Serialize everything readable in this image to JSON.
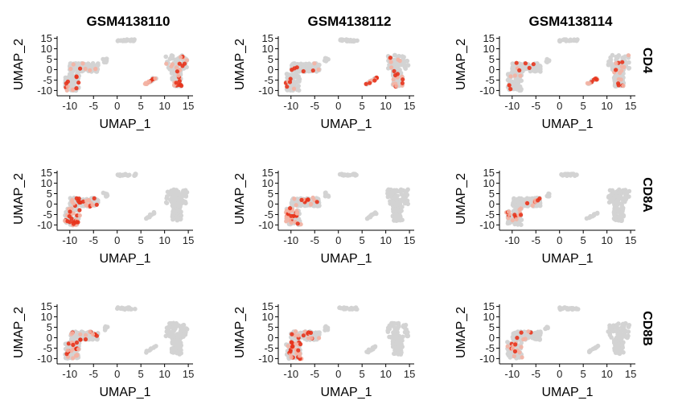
{
  "chart_data": {
    "type": "scatter",
    "description_free": true,
    "columns": [
      "GSM4138110",
      "GSM4138112",
      "GSM4138114"
    ],
    "rows": [
      "CD4",
      "CD8A",
      "CD8B"
    ],
    "xlabel": "UMAP_1",
    "ylabel": "UMAP_2",
    "xlim": [
      -12,
      16
    ],
    "ylim": [
      -11,
      16
    ],
    "xticks": [
      -10,
      -5,
      0,
      5,
      10,
      15
    ],
    "yticks": [
      -10,
      -5,
      0,
      5,
      10,
      15
    ],
    "colors": {
      "background_cells": "#d3d3d3",
      "low_expression": "#f4b3a3",
      "high_expression": "#e8341c"
    },
    "clusters": [
      {
        "name": "top-bar",
        "x": [
          0,
          4
        ],
        "y": [
          13.5,
          14.5
        ]
      },
      {
        "name": "small-blob",
        "x": [
          -3,
          -2
        ],
        "y": [
          3.5,
          5.5
        ]
      },
      {
        "name": "left-band",
        "x": [
          -10,
          -4
        ],
        "y": [
          -1,
          3
        ]
      },
      {
        "name": "left-tail",
        "x": [
          -11,
          -8
        ],
        "y": [
          -10,
          -2
        ]
      },
      {
        "name": "right-cluster",
        "x": [
          10.5,
          15
        ],
        "y": [
          -8,
          7
        ]
      },
      {
        "name": "mid-dots",
        "x": [
          6,
          8
        ],
        "y": [
          -7,
          -4
        ]
      }
    ],
    "expressed_cells": {
      "CD4": {
        "GSM4138110": 60,
        "GSM4138112": 45,
        "GSM4138114": 40
      },
      "CD8A": {
        "GSM4138110": 55,
        "GSM4138112": 50,
        "GSM4138114": 25
      },
      "CD8B": {
        "GSM4138110": 40,
        "GSM4138112": 45,
        "GSM4138114": 20
      }
    }
  }
}
